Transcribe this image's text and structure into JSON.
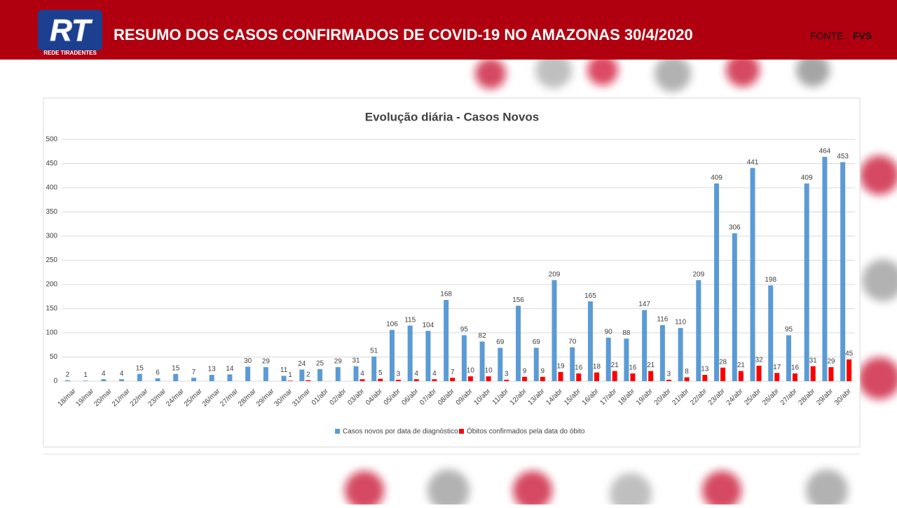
{
  "header": {
    "logo": "RT",
    "logo_subtitle": "REDE TIRADENTES",
    "title": "RESUMO DOS CASOS CONFIRMADOS DE COVID-19 NO AMAZONAS 30/4/2020",
    "source_label": "FONTE:",
    "source": "FVS"
  },
  "chart_data": {
    "type": "bar",
    "title": "Evolução diária - Casos Novos",
    "categories": [
      "18/mar",
      "19/mar",
      "20/mar",
      "21/mar",
      "22/mar",
      "23/mar",
      "24/mar",
      "25/mar",
      "26/mar",
      "27/mar",
      "28/mar",
      "29/mar",
      "30/mar",
      "31/mar",
      "01/abr",
      "02/abr",
      "03/abr",
      "04/abr",
      "05/abr",
      "06/abr",
      "07/abr",
      "08/abr",
      "09/abr",
      "10/abr",
      "11/abr",
      "12/abr",
      "13/abr",
      "14/abr",
      "15/abr",
      "16/abr",
      "17/abr",
      "18/abr",
      "19/abr",
      "20/abr",
      "21/abr",
      "22/abr",
      "23/abr",
      "24/abr",
      "25/abr",
      "26/abr",
      "27/abr",
      "28/abr",
      "29/abr",
      "30/abr"
    ],
    "series": [
      {
        "name": "Casos novos por data de diagnóstico",
        "color": "#5b9bd5",
        "values": [
          2,
          1,
          4,
          4,
          15,
          6,
          15,
          7,
          13,
          14,
          30,
          29,
          11,
          24,
          25,
          29,
          31,
          51,
          106,
          115,
          104,
          168,
          95,
          82,
          69,
          156,
          69,
          209,
          70,
          165,
          90,
          88,
          147,
          116,
          110,
          209,
          409,
          306,
          441,
          198,
          95,
          409,
          464,
          453
        ]
      },
      {
        "name": "Óbitos confirmados pela data do óbito",
        "color": "#ff0000",
        "values": [
          null,
          null,
          null,
          null,
          null,
          null,
          null,
          null,
          null,
          null,
          null,
          null,
          1,
          2,
          null,
          null,
          4,
          5,
          3,
          4,
          4,
          7,
          10,
          10,
          3,
          9,
          9,
          19,
          16,
          18,
          21,
          16,
          21,
          3,
          8,
          13,
          28,
          21,
          32,
          17,
          16,
          31,
          29,
          45
        ]
      }
    ],
    "ylim": [
      0,
      500
    ],
    "yticks": [
      0,
      50,
      100,
      150,
      200,
      250,
      300,
      350,
      400,
      450,
      500
    ],
    "grid": true
  }
}
